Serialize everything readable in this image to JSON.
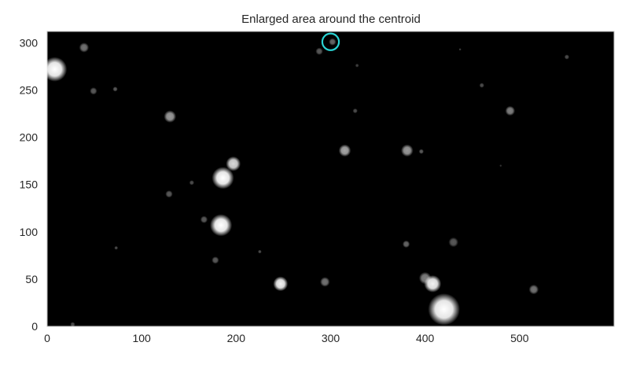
{
  "chart_data": {
    "type": "heatmap",
    "title": "Enlarged area around the centroid",
    "xlabel": "",
    "ylabel": "",
    "xlim": [
      0,
      600
    ],
    "ylim": [
      0,
      312
    ],
    "xticks": [
      0,
      100,
      200,
      300,
      400,
      500
    ],
    "yticks": [
      0,
      50,
      100,
      150,
      200,
      250,
      300
    ],
    "grid": false,
    "colormap": "gray",
    "background_color": "#000000",
    "sources": [
      {
        "x": 8,
        "y": 272,
        "size": 10,
        "brightness": 1.0
      },
      {
        "x": 39,
        "y": 295,
        "size": 4,
        "brightness": 0.45
      },
      {
        "x": 49,
        "y": 249,
        "size": 3,
        "brightness": 0.35
      },
      {
        "x": 72,
        "y": 251,
        "size": 2,
        "brightness": 0.35
      },
      {
        "x": 130,
        "y": 222,
        "size": 5,
        "brightness": 0.6
      },
      {
        "x": 129,
        "y": 140,
        "size": 3,
        "brightness": 0.35
      },
      {
        "x": 153,
        "y": 152,
        "size": 2,
        "brightness": 0.3
      },
      {
        "x": 166,
        "y": 113,
        "size": 3,
        "brightness": 0.35
      },
      {
        "x": 186,
        "y": 157,
        "size": 9,
        "brightness": 1.0
      },
      {
        "x": 197,
        "y": 172,
        "size": 6,
        "brightness": 0.85
      },
      {
        "x": 184,
        "y": 107,
        "size": 9,
        "brightness": 1.0
      },
      {
        "x": 178,
        "y": 70,
        "size": 3,
        "brightness": 0.35
      },
      {
        "x": 73,
        "y": 83,
        "size": 1.5,
        "brightness": 0.3
      },
      {
        "x": 225,
        "y": 79,
        "size": 1.5,
        "brightness": 0.3
      },
      {
        "x": 247,
        "y": 45,
        "size": 6,
        "brightness": 0.95
      },
      {
        "x": 294,
        "y": 47,
        "size": 4,
        "brightness": 0.45
      },
      {
        "x": 288,
        "y": 291,
        "size": 3,
        "brightness": 0.35
      },
      {
        "x": 302,
        "y": 301,
        "size": 3,
        "brightness": 0.4
      },
      {
        "x": 328,
        "y": 276,
        "size": 1.5,
        "brightness": 0.25
      },
      {
        "x": 326,
        "y": 228,
        "size": 2,
        "brightness": 0.3
      },
      {
        "x": 315,
        "y": 186,
        "size": 5,
        "brightness": 0.65
      },
      {
        "x": 381,
        "y": 186,
        "size": 5,
        "brightness": 0.6
      },
      {
        "x": 396,
        "y": 185,
        "size": 2,
        "brightness": 0.35
      },
      {
        "x": 380,
        "y": 87,
        "size": 3,
        "brightness": 0.4
      },
      {
        "x": 430,
        "y": 89,
        "size": 4,
        "brightness": 0.35
      },
      {
        "x": 400,
        "y": 51,
        "size": 5,
        "brightness": 0.5
      },
      {
        "x": 408,
        "y": 45,
        "size": 7,
        "brightness": 0.95
      },
      {
        "x": 420,
        "y": 18,
        "size": 13,
        "brightness": 1.0
      },
      {
        "x": 515,
        "y": 39,
        "size": 4,
        "brightness": 0.45
      },
      {
        "x": 490,
        "y": 228,
        "size": 4,
        "brightness": 0.5
      },
      {
        "x": 460,
        "y": 255,
        "size": 2,
        "brightness": 0.3
      },
      {
        "x": 550,
        "y": 285,
        "size": 2,
        "brightness": 0.3
      },
      {
        "x": 437,
        "y": 293,
        "size": 1,
        "brightness": 0.25
      },
      {
        "x": 480,
        "y": 170,
        "size": 1,
        "brightness": 0.2
      },
      {
        "x": 27,
        "y": 2,
        "size": 2,
        "brightness": 0.3
      }
    ],
    "centroid_marker": {
      "x": 300,
      "y": 301,
      "radius": 8,
      "color": "#2ad4d4"
    }
  }
}
